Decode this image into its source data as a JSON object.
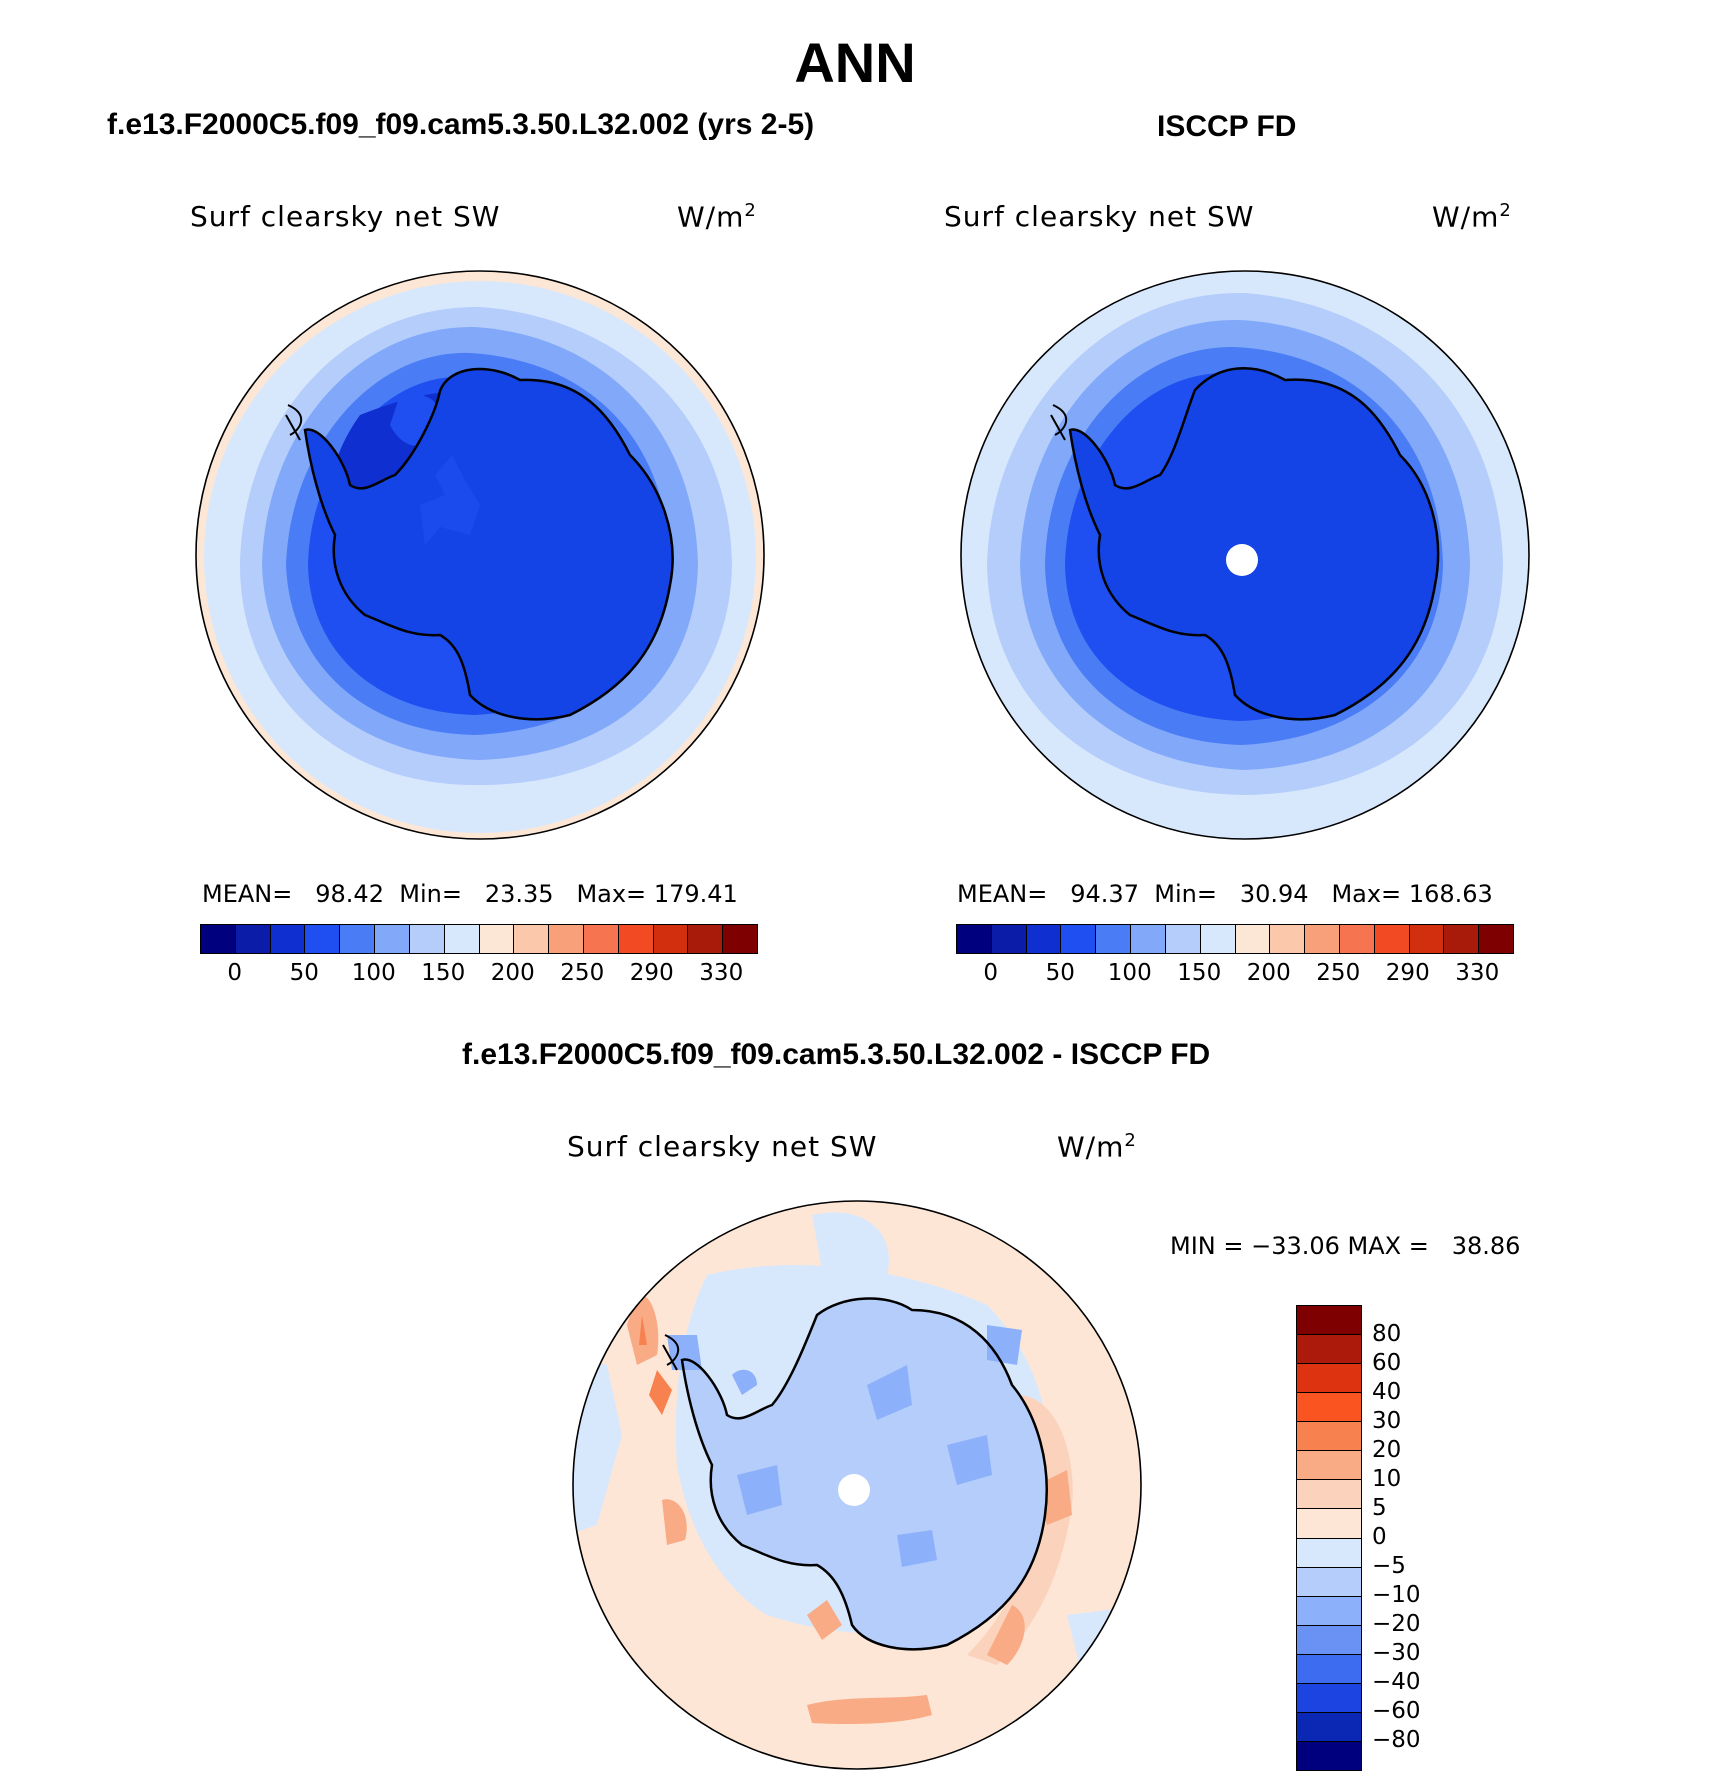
{
  "title": "ANN",
  "panels": [
    {
      "header": "f.e13.F2000C5.f09_f09.cam5.3.50.L32.002 (yrs 2-5)",
      "variable": "Surf clearsky net SW",
      "units": "W/m",
      "units_superscript": "2",
      "stats": {
        "mean_label": "MEAN=",
        "mean": "98.42",
        "min_label": "Min=",
        "min": "23.35",
        "max_label": "Max=",
        "max": "179.41"
      }
    },
    {
      "header": "ISCCP FD",
      "variable": "Surf clearsky net SW",
      "units": "W/m",
      "units_superscript": "2",
      "stats": {
        "mean_label": "MEAN=",
        "mean": "94.37",
        "min_label": "Min=",
        "min": "30.94",
        "max_label": "Max=",
        "max": "168.63"
      }
    }
  ],
  "diff_panel": {
    "header": "f.e13.F2000C5.f09_f09.cam5.3.50.L32.002 - ISCCP FD",
    "variable": "Surf clearsky net SW",
    "units": "W/m",
    "units_superscript": "2",
    "minmax": "MIN = −33.06 MAX =   38.86"
  },
  "abs_colorbar": {
    "colors": [
      "#00007f",
      "#0a1ca8",
      "#0f2fd0",
      "#1f4ff0",
      "#4a7cf5",
      "#82a8fa",
      "#b4cdfb",
      "#d8e8fc",
      "#fce6d6",
      "#fbc8ac",
      "#f8a07a",
      "#f67550",
      "#f24b24",
      "#d22f0e",
      "#a81a0a",
      "#7f0000"
    ],
    "labels": [
      "0",
      "50",
      "100",
      "150",
      "200",
      "250",
      "290",
      "330"
    ]
  },
  "diff_colorbar": {
    "colors": [
      "#7f0000",
      "#ac1a0b",
      "#dd3310",
      "#fa5520",
      "#f8824f",
      "#f9ab85",
      "#fbd2bb",
      "#fde6d6",
      "#d8e8fc",
      "#b4cdfb",
      "#8cb0fa",
      "#6a92f5",
      "#3d6cf0",
      "#1c44e0",
      "#0a28b4",
      "#00007f"
    ],
    "labels": [
      "80",
      "60",
      "40",
      "30",
      "20",
      "10",
      "5",
      "0",
      "−5",
      "−10",
      "−20",
      "−30",
      "−40",
      "−60",
      "−80"
    ]
  }
}
